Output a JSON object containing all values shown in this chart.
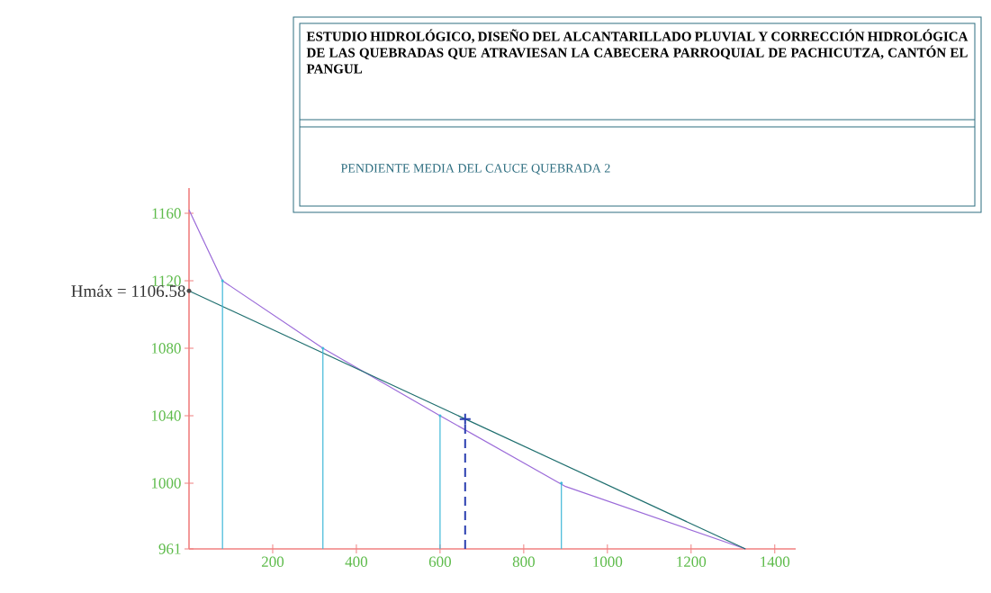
{
  "chart_data": {
    "type": "line",
    "title": "ESTUDIO HIDROLÓGICO, DISEÑO DEL ALCANTARILLADO PLUVIAL Y CORRECCIÓN HIDROLÓGICA DE LAS QUEBRADAS QUE ATRAVIESAN LA CABECERA PARROQUIAL DE PACHICUTZA, CANTÓN EL PANGUL",
    "subtitle": "PENDIENTE MEDIA DEL CAUCE QUEBRADA 2",
    "series": [
      {
        "color": "#9b6bd9",
        "x": [
          0,
          80,
          320,
          600,
          900,
          1330
        ],
        "values": [
          1162,
          1120,
          1080,
          1040,
          998,
          961
        ],
        "marker": "none",
        "line_style": "solid"
      },
      {
        "color": "#1f6f6f",
        "x": [
          0,
          1330
        ],
        "values": [
          1114,
          961
        ],
        "marker": "none",
        "line_style": "solid"
      },
      {
        "type": "lollipop",
        "color": "#40b8d8",
        "x": [
          80,
          320,
          600,
          890
        ],
        "values": [
          1120,
          1080,
          1040,
          1000
        ],
        "marker": "none",
        "line_style": "solid"
      },
      {
        "type": "lollipop",
        "color": "#2a3fb0",
        "x": [
          660
        ],
        "values": [
          1038
        ],
        "marker": "cross",
        "line_style": "dashed"
      }
    ],
    "annotations": [
      {
        "text": "Hmáx = 1106.58",
        "x": 0,
        "y": 1114
      }
    ],
    "xlim": [
      0,
      1450
    ],
    "ylim": [
      961,
      1175
    ],
    "xticks": [
      200,
      400,
      600,
      800,
      1000,
      1200,
      1400
    ],
    "yticks": [
      961,
      1000,
      1040,
      1080,
      1120,
      1160
    ],
    "grid": false
  }
}
